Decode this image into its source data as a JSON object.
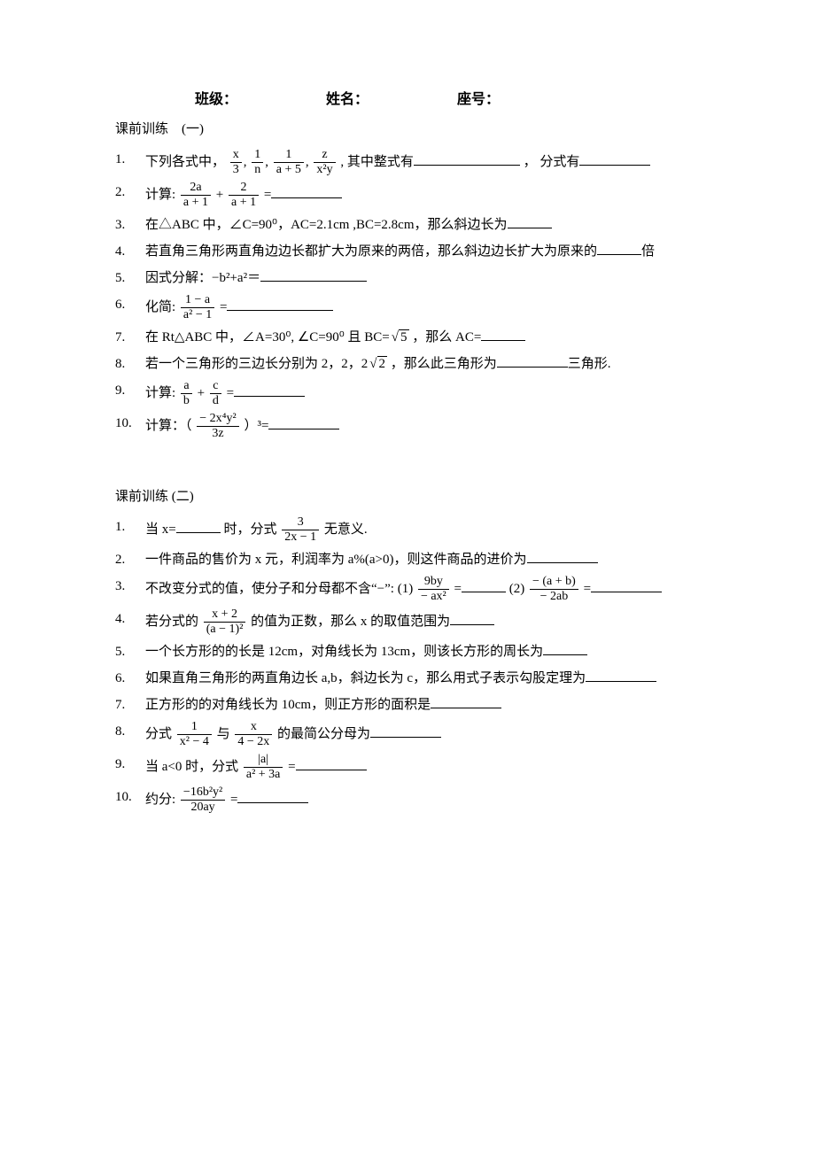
{
  "header": {
    "class_label": "班级：",
    "name_label": "姓名：",
    "seat_label": "座号："
  },
  "set1": {
    "title": "课前训练　(一)",
    "q1_a": "下列各式中，",
    "q1_b": ", 其中整式有",
    "q1_c": "，  分式有",
    "q2_a": "计算: ",
    "q2_eq": " =",
    "q3": "在△ABC 中，∠C=90⁰，AC=2.1cm ,BC=2.8cm，那么斜边长为",
    "q4_a": "若直角三角形两直角边边长都扩大为原来的两倍，那么斜边边长扩大为原来的",
    "q4_b": "倍",
    "q5": "因式分解：−b²+a²＝",
    "q6": "化简: ",
    "q6_eq": " =",
    "q7_a": "在 Rt△ABC 中，∠A=30⁰,  ∠C=90⁰ 且 BC=",
    "q7_b": " ，那么 AC=",
    "q8_a": "若一个三角形的三边长分别为 2，2，2",
    "q8_b": " ，那么此三角形为",
    "q8_c": "三角形.",
    "q9": "计算: ",
    "q9_eq": " =",
    "q10": "计算：（ ",
    "q10_pow": " ）³=",
    "fracs": {
      "f1_num": "x",
      "f1_den": "3",
      "f2_num": "1",
      "f2_den": "n",
      "f3_num": "1",
      "f3_den": "a + 5",
      "f4_num": "z",
      "f4_den": "x²y",
      "q2a_num": "2a",
      "q2a_den": "a + 1",
      "q2b_num": "2",
      "q2b_den": "a + 1",
      "q6_num": "1 − a",
      "q6_den": "a² − 1",
      "q9a_num": "a",
      "q9a_den": "b",
      "q9b_num": "c",
      "q9b_den": "d",
      "q10_num": "− 2x⁴y²",
      "q10_den": "3z"
    },
    "sqrt5": "5",
    "sqrt2": "2"
  },
  "set2": {
    "title": "课前训练 (二)",
    "q1_a": "当 x=",
    "q1_b": "时，分式",
    "q1_c": " 无意义.",
    "q2": "一件商品的售价为 x 元，利润率为 a%(a>0)，则这件商品的进价为",
    "q3_a": "不改变分式的值，使分子和分母都不含“−”: (1)",
    "q3_b": "=",
    "q3_c": "  (2)",
    "q3_d": " =",
    "q4_a": "若分式的",
    "q4_b": " 的值为正数，那么 x 的取值范围为",
    "q5": "一个长方形的的长是 12cm，对角线长为 13cm，则该长方形的周长为",
    "q6": "如果直角三角形的两直角边长 a,b，斜边长为 c，那么用式子表示勾股定理为",
    "q7": "正方形的的对角线长为 10cm，则正方形的面积是",
    "q8_a": "分式",
    "q8_b": "与",
    "q8_c": " 的最简公分母为",
    "q9_a": "当 a<0 时，分式",
    "q9_b": " =",
    "q10": "约分:  ",
    "q10_eq": " =",
    "fracs": {
      "q1_num": "3",
      "q1_den": "2x − 1",
      "q3a_num": "9by",
      "q3a_den": "− ax²",
      "q3b_num": "− (a + b)",
      "q3b_den": "− 2ab",
      "q4_num": "x + 2",
      "q4_den": "(a − 1)²",
      "q8a_num": "1",
      "q8a_den": "x² − 4",
      "q8b_num": "x",
      "q8b_den": "4 − 2x",
      "q9_num": "|a|",
      "q9_den": "a² + 3a",
      "q10_num": "−16b²y²",
      "q10_den": "20ay"
    }
  }
}
